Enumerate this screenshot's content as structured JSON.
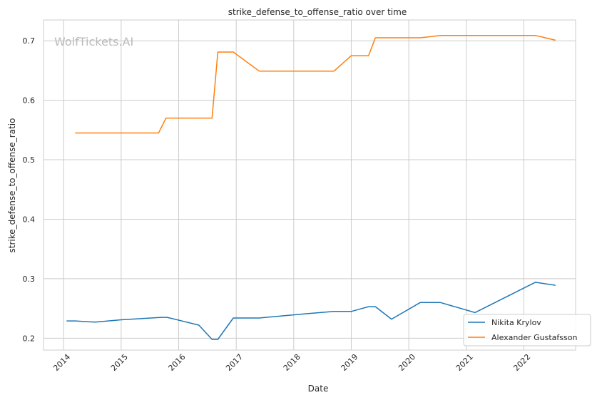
{
  "chart_data": {
    "type": "line",
    "title": "strike_defense_to_offense_ratio over time",
    "xlabel": "Date",
    "ylabel": "strike_defense_to_offense_ratio",
    "watermark": "WolfTickets.AI",
    "grid": true,
    "legend_position": "lower-right",
    "xlim": [
      2013.65,
      2022.9
    ],
    "ylim": [
      0.18,
      0.735
    ],
    "x_ticks": [
      2014,
      2015,
      2016,
      2017,
      2018,
      2019,
      2020,
      2021,
      2022
    ],
    "x_tick_labels": [
      "2014",
      "2015",
      "2016",
      "2017",
      "2018",
      "2019",
      "2020",
      "2021",
      "2022"
    ],
    "y_ticks": [
      0.2,
      0.3,
      0.4,
      0.5,
      0.6,
      0.7
    ],
    "y_tick_labels": [
      "0.2",
      "0.3",
      "0.4",
      "0.5",
      "0.6",
      "0.7"
    ],
    "series": [
      {
        "name": "Nikita Krylov",
        "color": "#1f77b4",
        "x": [
          2014.05,
          2014.2,
          2014.55,
          2015.0,
          2015.7,
          2015.8,
          2016.35,
          2016.58,
          2016.68,
          2016.95,
          2017.4,
          2018.2,
          2018.7,
          2019.0,
          2019.3,
          2019.42,
          2019.7,
          2020.2,
          2020.55,
          2021.15,
          2022.2,
          2022.55
        ],
        "y": [
          0.229,
          0.229,
          0.227,
          0.231,
          0.235,
          0.235,
          0.222,
          0.198,
          0.198,
          0.234,
          0.234,
          0.241,
          0.245,
          0.245,
          0.253,
          0.253,
          0.232,
          0.26,
          0.26,
          0.243,
          0.294,
          0.289
        ]
      },
      {
        "name": "Alexander Gustafsson",
        "color": "#ff7f0e",
        "x": [
          2014.2,
          2015.65,
          2015.78,
          2016.58,
          2016.68,
          2016.95,
          2017.4,
          2018.7,
          2019.0,
          2019.3,
          2019.42,
          2020.2,
          2020.55,
          2021.15,
          2022.2,
          2022.55
        ],
        "y": [
          0.545,
          0.545,
          0.57,
          0.57,
          0.681,
          0.681,
          0.649,
          0.649,
          0.675,
          0.675,
          0.705,
          0.705,
          0.709,
          0.709,
          0.709,
          0.701
        ]
      }
    ]
  }
}
